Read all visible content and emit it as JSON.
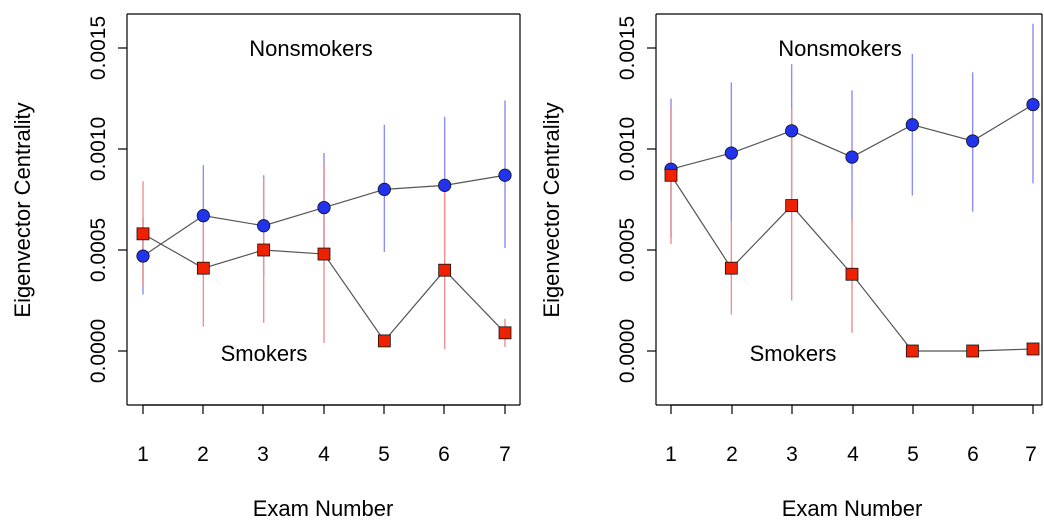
{
  "chart_data": [
    {
      "type": "scatter",
      "xlabel": "Exam Number",
      "ylabel": "Eigenvector Centrality",
      "x": [
        1,
        2,
        3,
        4,
        5,
        6,
        7
      ],
      "xlim": [
        1,
        7
      ],
      "ylim": [
        -0.00018,
        0.00167
      ],
      "yticks": [
        "0.0000",
        "0.0005",
        "0.0010",
        "0.0015"
      ],
      "annotations": [
        {
          "text": "Nonsmokers",
          "x": 4,
          "y": 0.0015
        },
        {
          "text": "Smokers",
          "x": 3,
          "y": -2e-05
        }
      ],
      "series": [
        {
          "name": "Nonsmokers",
          "marker": "circle",
          "color": "#2233ee",
          "error_color": "#8a8ff0",
          "values": [
            0.00047,
            0.00067,
            0.00062,
            0.00071,
            0.0008,
            0.00082,
            0.00087
          ],
          "lower": [
            0.00028,
            0.00041,
            0.00037,
            0.00045,
            0.00049,
            0.00047,
            0.00051
          ],
          "upper": [
            0.00066,
            0.00092,
            0.00087,
            0.00098,
            0.00112,
            0.00116,
            0.00124
          ]
        },
        {
          "name": "Smokers",
          "marker": "square",
          "color": "#ee2200",
          "error_color": "#ef8f8f",
          "values": [
            0.00058,
            0.00041,
            0.0005,
            0.00048,
            5e-05,
            0.0004,
            9e-05
          ],
          "lower": [
            0.00032,
            0.00012,
            0.00014,
            4e-05,
            5e-05,
            1e-05,
            2e-05
          ],
          "upper": [
            0.00084,
            0.00067,
            0.00086,
            0.00093,
            5e-05,
            0.0008,
            0.00016
          ]
        }
      ]
    },
    {
      "type": "scatter",
      "xlabel": "Exam Number",
      "ylabel": "Eigenvector Centrality",
      "x": [
        1,
        2,
        3,
        4,
        5,
        6,
        7
      ],
      "xlim": [
        1,
        7
      ],
      "ylim": [
        -0.00018,
        0.00167
      ],
      "yticks": [
        "0.0000",
        "0.0005",
        "0.0010",
        "0.0015"
      ],
      "annotations": [
        {
          "text": "Nonsmokers",
          "x": 4,
          "y": 0.0015
        },
        {
          "text": "Smokers",
          "x": 3,
          "y": -2e-05
        }
      ],
      "series": [
        {
          "name": "Nonsmokers",
          "marker": "circle",
          "color": "#2233ee",
          "error_color": "#8a8ff0",
          "values": [
            0.0009,
            0.00098,
            0.00109,
            0.00096,
            0.00112,
            0.00104,
            0.00122
          ],
          "lower": [
            0.00056,
            0.00064,
            0.00076,
            0.00065,
            0.00077,
            0.00069,
            0.00083
          ],
          "upper": [
            0.00125,
            0.00133,
            0.00142,
            0.00129,
            0.00147,
            0.00138,
            0.00162
          ]
        },
        {
          "name": "Smokers",
          "marker": "square",
          "color": "#ee2200",
          "error_color": "#ef8f8f",
          "values": [
            0.00087,
            0.00041,
            0.00072,
            0.00038,
            0.0,
            0.0,
            1e-05
          ],
          "lower": [
            0.00053,
            0.00018,
            0.00025,
            9e-05,
            0.0,
            0.0,
            1e-05
          ],
          "upper": [
            0.00121,
            0.00064,
            0.0012,
            0.00066,
            0.0,
            0.0,
            1e-05
          ]
        }
      ]
    }
  ]
}
